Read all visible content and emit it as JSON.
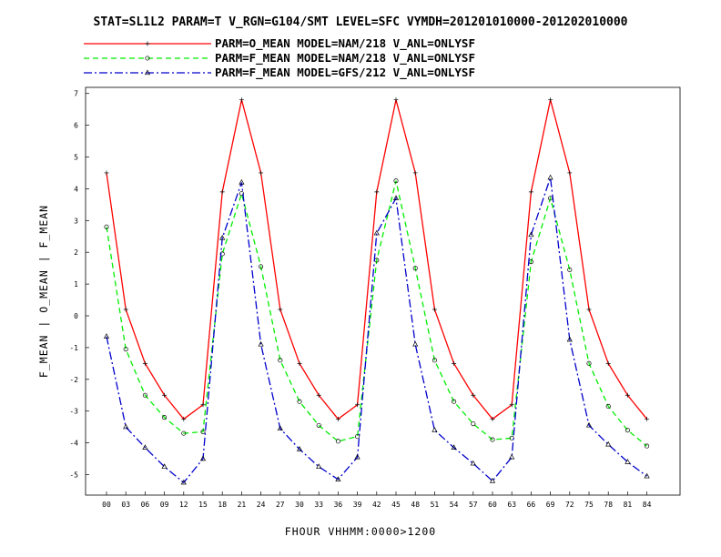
{
  "chart_data": {
    "type": "line",
    "title": "STAT=SL1L2 PARAM=T V_RGN=G104/SMT LEVEL=SFC VYMDH=201201010000-201202010000",
    "xlabel": "FHOUR VHHMM:0000>1200",
    "ylabel": "F_MEAN | O_MEAN | F_MEAN",
    "ylim": [
      -5.7,
      7.2
    ],
    "yticks": [
      -5,
      -4,
      -3,
      -2,
      -1,
      0,
      1,
      2,
      3,
      4,
      5,
      6,
      7
    ],
    "categories": [
      "00",
      "03",
      "06",
      "09",
      "12",
      "15",
      "18",
      "21",
      "24",
      "27",
      "30",
      "33",
      "36",
      "39",
      "42",
      "45",
      "48",
      "51",
      "54",
      "57",
      "60",
      "63",
      "66",
      "69",
      "72",
      "75",
      "78",
      "81",
      "84"
    ],
    "legend_position": "top",
    "grid": false,
    "series": [
      {
        "name": "PARM=O_MEAN MODEL=NAM/218 V_ANL=ONLYSF",
        "color": "#ff0000",
        "dash": "solid",
        "marker": "plus",
        "values": [
          4.5,
          0.2,
          -1.5,
          -2.5,
          -3.25,
          -2.8,
          3.9,
          6.8,
          4.5,
          0.2,
          -1.5,
          -2.5,
          -3.25,
          -2.8,
          3.9,
          6.8,
          4.5,
          0.2,
          -1.5,
          -2.5,
          -3.25,
          -2.8,
          3.9,
          6.8,
          4.5,
          0.2,
          -1.5,
          -2.5,
          -3.25
        ]
      },
      {
        "name": "PARM=F_MEAN MODEL=NAM/218 V_ANL=ONLYSF",
        "color": "#00ee00",
        "dash": "dashed",
        "marker": "circle",
        "values": [
          2.8,
          -1.05,
          -2.5,
          -3.2,
          -3.7,
          -3.65,
          1.95,
          3.85,
          1.55,
          -1.4,
          -2.7,
          -3.45,
          -3.95,
          -3.8,
          1.75,
          4.25,
          1.5,
          -1.4,
          -2.7,
          -3.4,
          -3.9,
          -3.85,
          1.7,
          3.7,
          1.45,
          -1.5,
          -2.85,
          -3.6,
          -4.1
        ]
      },
      {
        "name": "PARM=F_MEAN MODEL=GFS/212 V_ANL=ONLYSF",
        "color": "#0000cc",
        "dash": "dashdot",
        "marker": "triangle",
        "values": [
          -0.65,
          -3.5,
          -4.15,
          -4.75,
          -5.25,
          -4.5,
          2.45,
          4.2,
          -0.9,
          -3.55,
          -4.2,
          -4.75,
          -5.15,
          -4.45,
          2.6,
          3.7,
          -0.9,
          -3.6,
          -4.15,
          -4.65,
          -5.2,
          -4.45,
          2.55,
          4.35,
          -0.75,
          -3.45,
          -4.05,
          -4.6,
          -5.05
        ]
      }
    ]
  }
}
